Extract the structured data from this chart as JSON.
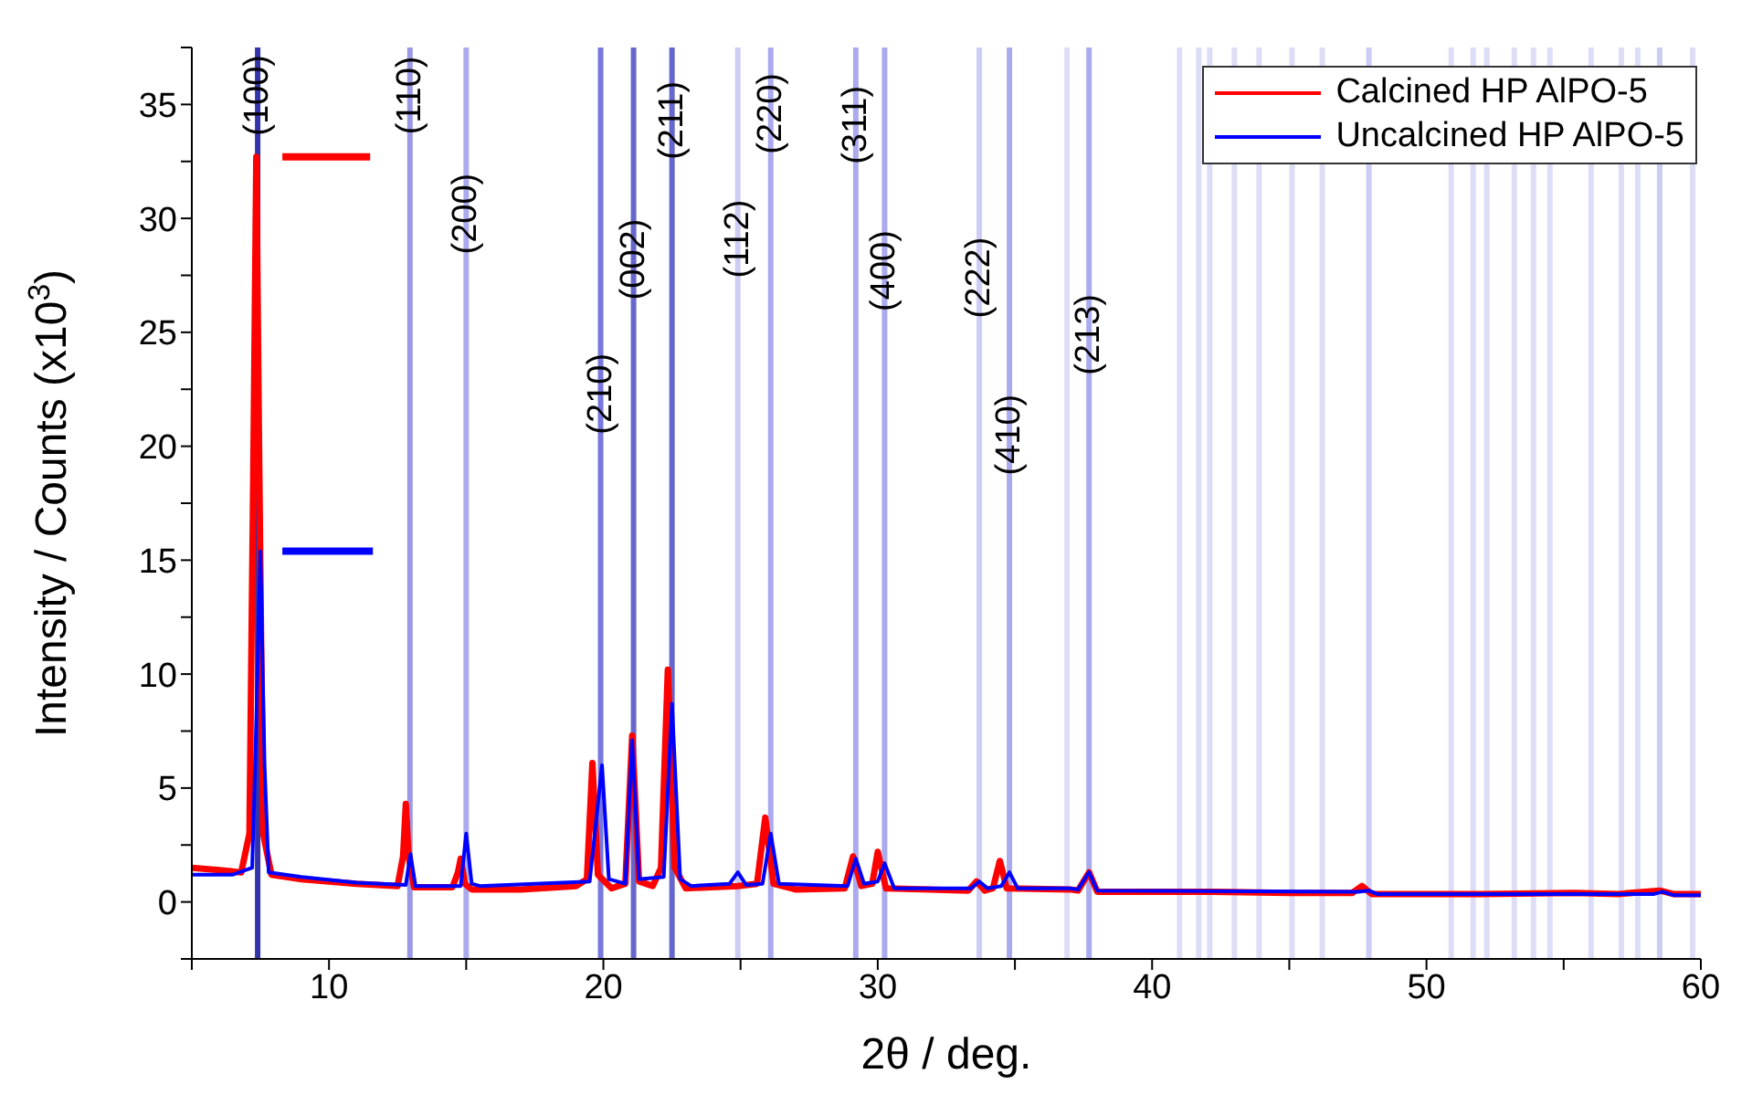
{
  "chart_data": {
    "type": "line",
    "xlabel": "2θ / deg.",
    "ylabel": "Intensity / Counts (x10$^{3}$)",
    "xlim": [
      5,
      60
    ],
    "ylim": [
      -2.5,
      37.5
    ],
    "xticks": [
      {
        "value": 5,
        "label": null
      },
      10,
      {
        "value": 15,
        "label": null
      },
      20,
      {
        "value": 25,
        "label": null
      },
      30,
      {
        "value": 35,
        "label": null
      },
      40,
      {
        "value": 45,
        "label": null
      },
      50,
      {
        "value": 55,
        "label": null
      },
      60
    ],
    "yticks": [
      {
        "value": -2.5,
        "label": null
      },
      0,
      {
        "value": 2.5,
        "label": null
      },
      5,
      {
        "value": 7.5,
        "label": null
      },
      10,
      {
        "value": 12.5,
        "label": null
      },
      15,
      {
        "value": 17.5,
        "label": null
      },
      20,
      {
        "value": 22.5,
        "label": null
      },
      25,
      {
        "value": 27.5,
        "label": null
      },
      30,
      {
        "value": 32.5,
        "label": null
      },
      35,
      {
        "value": 37.5,
        "label": null
      }
    ],
    "legend": "top right",
    "line_style": "solid",
    "series": [
      {
        "name": "Calcined HP AlPO-5",
        "color": "#ff0000",
        "x": [
          5,
          6,
          6.8,
          7.1,
          7.25,
          7.35,
          7.45,
          7.6,
          7.9,
          9,
          11,
          12.5,
          12.7,
          12.8,
          12.9,
          13.1,
          14.5,
          14.7,
          14.8,
          14.95,
          15.2,
          17,
          19,
          19.4,
          19.6,
          19.8,
          20.3,
          20.8,
          21.05,
          21.3,
          21.8,
          22.1,
          22.35,
          22.6,
          23,
          24.9,
          25.6,
          25.9,
          26.2,
          27,
          28.8,
          29.1,
          29.4,
          29.8,
          30,
          30.3,
          33.3,
          33.6,
          33.9,
          34.2,
          34.45,
          34.7,
          37,
          37.3,
          37.7,
          38,
          40,
          42.2,
          45,
          47.3,
          47.65,
          48,
          52,
          55.4,
          57,
          58.5,
          59,
          60
        ],
        "values": [
          1.5,
          1.4,
          1.3,
          3,
          20,
          32.7,
          20,
          3,
          1.2,
          1,
          0.8,
          0.7,
          2,
          4.3,
          2,
          0.65,
          0.65,
          1.3,
          1.9,
          0.8,
          0.55,
          0.55,
          0.7,
          1,
          6.1,
          1.2,
          0.6,
          0.8,
          7.3,
          0.9,
          0.7,
          1.5,
          10.2,
          1.5,
          0.6,
          0.7,
          0.8,
          3.7,
          0.8,
          0.55,
          0.6,
          2,
          0.7,
          0.8,
          2.2,
          0.6,
          0.5,
          0.9,
          0.5,
          0.6,
          1.8,
          0.6,
          0.55,
          0.5,
          1.3,
          0.45,
          0.45,
          0.45,
          0.4,
          0.4,
          0.7,
          0.35,
          0.35,
          0.4,
          0.35,
          0.5,
          0.35,
          0.35
        ]
      },
      {
        "name": "Uncalcined HP AlPO-5",
        "color": "#0000ff",
        "x": [
          5,
          6.5,
          7.2,
          7.35,
          7.5,
          7.65,
          7.8,
          9,
          11,
          12.8,
          12.97,
          13.15,
          14.8,
          15,
          15.2,
          15.5,
          19.5,
          19.95,
          20.2,
          20.8,
          21.05,
          21.3,
          22.2,
          22.5,
          22.8,
          23.2,
          24.6,
          24.9,
          25.2,
          25.8,
          26.1,
          26.4,
          28.9,
          29.2,
          29.5,
          30,
          30.25,
          30.6,
          33.4,
          33.7,
          34,
          34.5,
          34.8,
          35.1,
          37,
          37.3,
          37.7,
          38,
          47.5,
          47.9,
          48.2,
          58.3,
          58.6,
          59,
          60
        ],
        "values": [
          1.2,
          1.2,
          1.5,
          8,
          15.4,
          6,
          1.3,
          1.1,
          0.85,
          0.75,
          2.1,
          0.7,
          0.7,
          3,
          0.8,
          0.7,
          0.9,
          6,
          1,
          0.8,
          7.1,
          1,
          1.1,
          8.7,
          1,
          0.7,
          0.8,
          1.3,
          0.75,
          0.8,
          3,
          0.8,
          0.7,
          1.9,
          0.8,
          0.9,
          1.7,
          0.6,
          0.6,
          0.9,
          0.6,
          0.7,
          1.3,
          0.6,
          0.6,
          0.55,
          1.3,
          0.5,
          0.45,
          0.5,
          0.35,
          0.35,
          0.45,
          0.3,
          0.3
        ]
      },
      {
        "color": "#ff0000",
        "x": [
          8.3,
          11.5
        ],
        "values": [
          32.7,
          32.7
        ]
      },
      {
        "color": "#0000ff",
        "x": [
          8.3,
          11.6
        ],
        "values": [
          15.4,
          15.4
        ]
      }
    ],
    "ref_lines": [
      {
        "axis": "x",
        "value": 7.4,
        "color": "#3333aa"
      },
      {
        "axis": "x",
        "value": 12.95,
        "color": "#9999e6"
      },
      {
        "axis": "x",
        "value": 15,
        "color": "#aaaaee"
      },
      {
        "axis": "x",
        "value": 19.9,
        "color": "#7777dd"
      },
      {
        "axis": "x",
        "value": 21.1,
        "color": "#6666cc"
      },
      {
        "axis": "x",
        "value": 22.5,
        "color": "#6666cc"
      },
      {
        "axis": "x",
        "value": 24.9,
        "color": "#ccccf5"
      },
      {
        "axis": "x",
        "value": 26.1,
        "color": "#aaaaee"
      },
      {
        "axis": "x",
        "value": 29.2,
        "color": "#aaaaee"
      },
      {
        "axis": "x",
        "value": 30.25,
        "color": "#aaaaee"
      },
      {
        "axis": "x",
        "value": 33.7,
        "color": "#ccccf5"
      },
      {
        "axis": "x",
        "value": 34.8,
        "color": "#aaaaee"
      },
      {
        "axis": "x",
        "value": 36.9,
        "color": "#ddddf8"
      },
      {
        "axis": "x",
        "value": 37.7,
        "color": "#aaaaee"
      },
      {
        "axis": "x",
        "value": 41,
        "color": "#ddddf8"
      },
      {
        "axis": "x",
        "value": 41.7,
        "color": "#ddddf8"
      },
      {
        "axis": "x",
        "value": 42.1,
        "color": "#ddddf8"
      },
      {
        "axis": "x",
        "value": 43,
        "color": "#ddddf8"
      },
      {
        "axis": "x",
        "value": 43.9,
        "color": "#ddddf8"
      },
      {
        "axis": "x",
        "value": 45.1,
        "color": "#ddddf8"
      },
      {
        "axis": "x",
        "value": 46.2,
        "color": "#ddddf8"
      },
      {
        "axis": "x",
        "value": 47.9,
        "color": "#ccccf5"
      },
      {
        "axis": "x",
        "value": 50.9,
        "color": "#ddddf8"
      },
      {
        "axis": "x",
        "value": 51.7,
        "color": "#ddddf8"
      },
      {
        "axis": "x",
        "value": 52.2,
        "color": "#ddddf8"
      },
      {
        "axis": "x",
        "value": 53.2,
        "color": "#ddddf8"
      },
      {
        "axis": "x",
        "value": 53.9,
        "color": "#ddddf8"
      },
      {
        "axis": "x",
        "value": 54.5,
        "color": "#ddddf8"
      },
      {
        "axis": "x",
        "value": 56,
        "color": "#ddddf8"
      },
      {
        "axis": "x",
        "value": 57.1,
        "color": "#ddddf8"
      },
      {
        "axis": "x",
        "value": 57.7,
        "color": "#ddddf8"
      },
      {
        "axis": "x",
        "value": 58.5,
        "color": "#ccccf5"
      },
      {
        "axis": "x",
        "value": 59.7,
        "color": "#ddddf8"
      }
    ],
    "annotations": [
      {
        "text": "(100)",
        "x": 7.4,
        "y": 35.4
      },
      {
        "text": "(110)",
        "x": 12.95,
        "y": 35.4
      },
      {
        "text": "(200)",
        "x": 15,
        "y": 30.2
      },
      {
        "text": "(210)",
        "x": 19.9,
        "y": 22.3
      },
      {
        "text": "(002)",
        "x": 21.1,
        "y": 28.2
      },
      {
        "text": "(211)",
        "x": 22.5,
        "y": 34.3
      },
      {
        "text": "(112)",
        "x": 24.9,
        "y": 29.1
      },
      {
        "text": "(220)",
        "x": 26.1,
        "y": 34.6
      },
      {
        "text": "(311)",
        "x": 29.2,
        "y": 34.1
      },
      {
        "text": "(400)",
        "x": 30.25,
        "y": 27.7
      },
      {
        "text": "(222)",
        "x": 33.7,
        "y": 27.4
      },
      {
        "text": "(410)",
        "x": 34.8,
        "y": 20.5
      },
      {
        "text": "(213)",
        "x": 37.7,
        "y": 24.9
      }
    ]
  }
}
